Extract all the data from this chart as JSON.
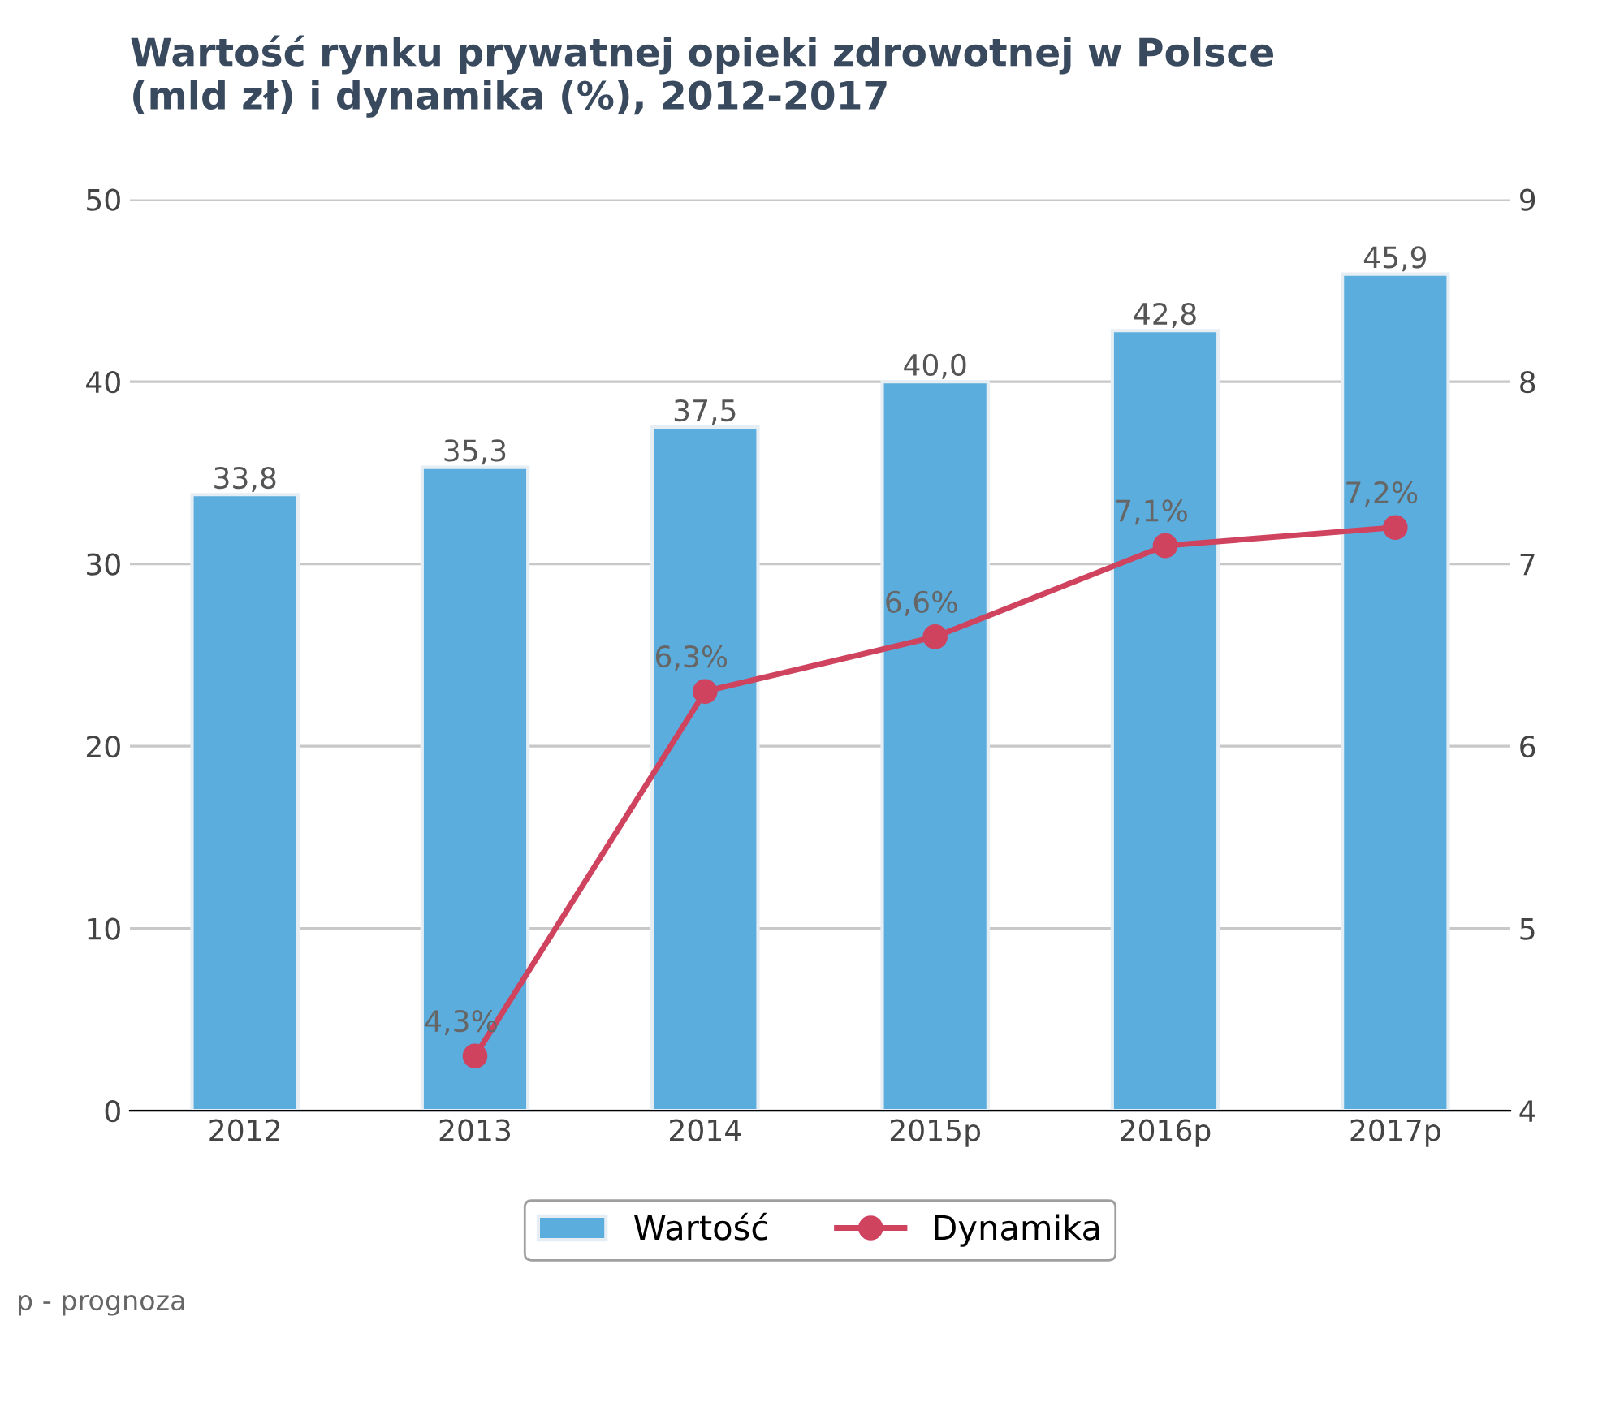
{
  "chart_data": {
    "type": "bar",
    "title": "Wartość rynku prywatnej opieki zdrowotnej w Polsce\n(mld zł) i dynamika (%), 2012-2017",
    "categories": [
      "2012",
      "2013",
      "2014",
      "2015p",
      "2016p",
      "2017p"
    ],
    "series": [
      {
        "name": "Wartość",
        "color": "#5aaddd",
        "values": [
          33.8,
          35.3,
          37.5,
          40.0,
          42.8,
          45.9
        ],
        "value_labels": [
          "33,8",
          "35,3",
          "37,5",
          "40,0",
          "42,8",
          "45,9"
        ]
      },
      {
        "name": "Dynamika",
        "type": "line",
        "axis": "y2",
        "color": "#d0435f",
        "values": [
          null,
          4.3,
          6.3,
          6.6,
          7.1,
          7.2
        ],
        "value_labels": [
          null,
          "4,3%",
          "6,3%",
          "6,6%",
          "7,1%",
          "7,2%"
        ]
      }
    ],
    "ylim": [
      0,
      50
    ],
    "yticks": [
      0,
      10,
      20,
      30,
      40,
      50
    ],
    "y2lim": [
      4,
      9
    ],
    "y2ticks": [
      4,
      5,
      6,
      7,
      8,
      9
    ],
    "grid": "y",
    "legend": "bottom",
    "marker": "circle",
    "line_style": "solid",
    "annotations": [
      "p - prognoza"
    ]
  }
}
